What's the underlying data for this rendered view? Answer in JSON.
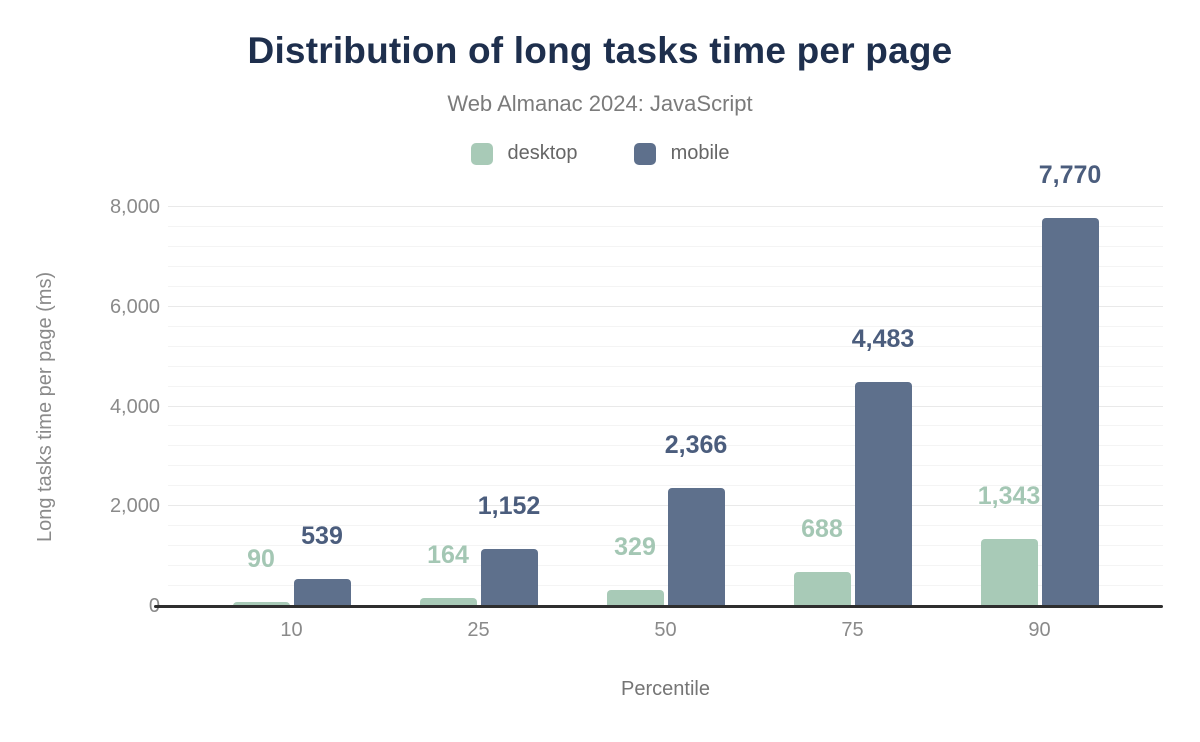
{
  "chart_data": {
    "type": "bar",
    "title": "Distribution of long tasks time per page",
    "subtitle": "Web Almanac 2024: JavaScript",
    "xlabel": "Percentile",
    "ylabel": "Long tasks time per page (ms)",
    "categories": [
      "10",
      "25",
      "50",
      "75",
      "90"
    ],
    "series": [
      {
        "name": "desktop",
        "color": "#a8cab7",
        "label_color": "#a4c7b4",
        "values": [
          90,
          164,
          329,
          688,
          1343
        ],
        "labels": [
          "90",
          "164",
          "329",
          "688",
          "1,343"
        ]
      },
      {
        "name": "mobile",
        "color": "#5e708c",
        "label_color": "#4b5d7d",
        "values": [
          539,
          1152,
          2366,
          4483,
          7770
        ],
        "labels": [
          "539",
          "1,152",
          "2,366",
          "4,483",
          "7,770"
        ]
      }
    ],
    "ylim": [
      0,
      8000
    ],
    "ytick_step": 2000,
    "yticks": [
      "0",
      "2,000",
      "4,000",
      "6,000",
      "8,000"
    ],
    "grid_minor_step": 400,
    "grid": "on",
    "legend_position": "top",
    "colors": {
      "title": "#1e2f4d",
      "subtitle": "#7b7b7b",
      "legend_text": "#666666",
      "axis_tick_text": "#8a8a8a",
      "axis_title_text": "#757575",
      "axis_line": "#2e2e2e",
      "grid_minor": "#f4f4f4",
      "grid_major": "#e9e9e9",
      "background": "#ffffff"
    }
  }
}
